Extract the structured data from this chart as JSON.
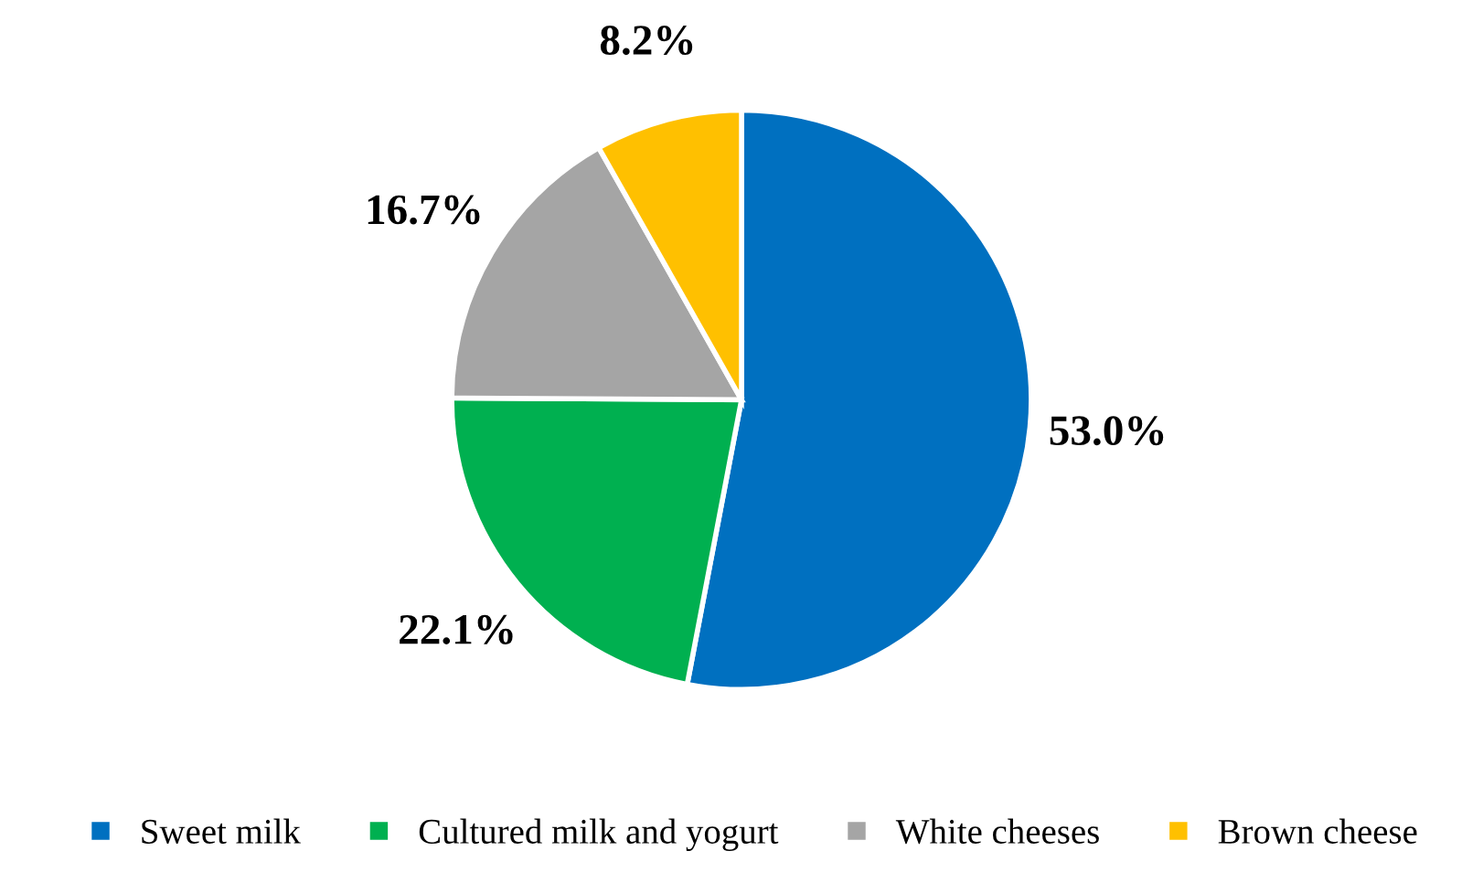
{
  "chart_data": {
    "type": "pie",
    "categories": [
      "Sweet milk",
      "Cultured milk and yogurt",
      "White cheeses",
      "Brown cheese"
    ],
    "values": [
      53.0,
      22.1,
      16.7,
      8.2
    ],
    "value_labels": [
      "53.0%",
      "22.1%",
      "16.7%",
      "8.2%"
    ],
    "colors": [
      "#0070c0",
      "#00b050",
      "#a5a5a5",
      "#ffc000"
    ],
    "legend": "bottom"
  }
}
